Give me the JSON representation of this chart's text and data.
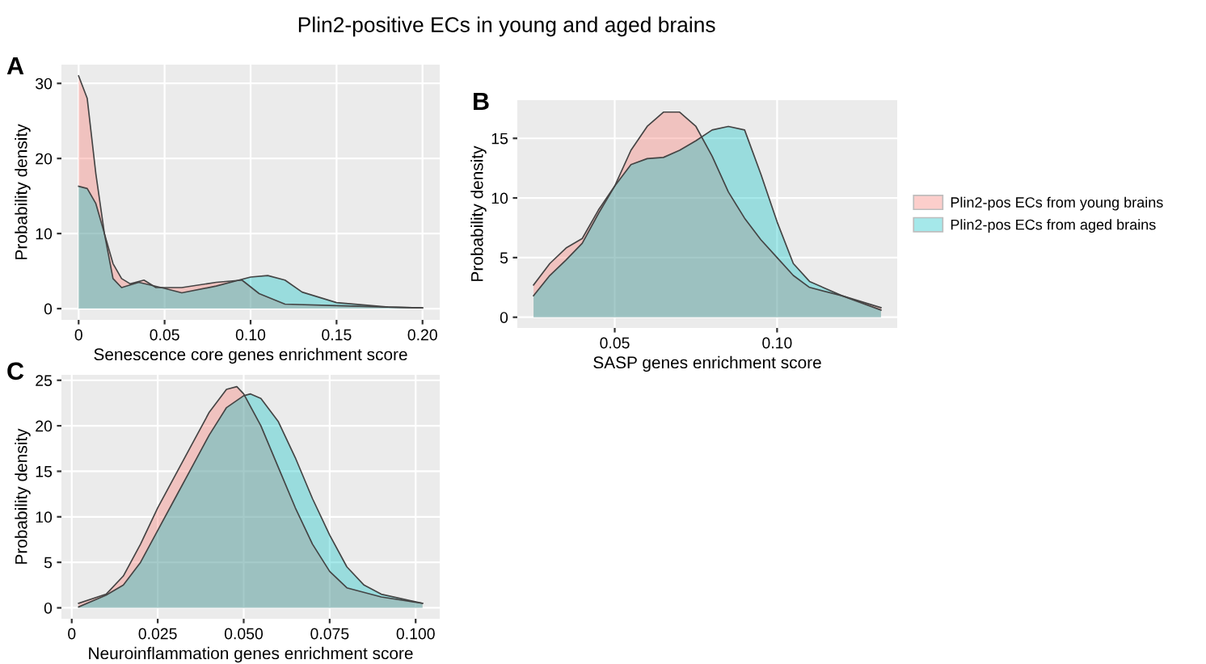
{
  "chart_data": [
    {
      "type": "area",
      "title": "Plin2-positive ECs in young and aged brains",
      "xlabel": "Senescence core genes enrichment score",
      "ylabel": "Probability density",
      "annotations": [
        "A"
      ],
      "xlim": [
        -0.01,
        0.21
      ],
      "xticks": [
        {
          "value": 0,
          "label": "0"
        },
        0.05,
        {
          "value": 0.1,
          "label": "0.10"
        },
        0.15,
        {
          "value": 0.2,
          "label": "0.20"
        }
      ],
      "ylim": [
        -1.5,
        32.5
      ],
      "yticks": [
        0,
        10,
        20,
        30
      ],
      "grid": true,
      "legend": false,
      "series": [
        {
          "color": "#f8766d",
          "x": [
            0,
            0.005,
            0.01,
            0.015,
            0.02,
            0.025,
            0.03,
            0.038,
            0.045,
            0.06,
            0.08,
            0.095,
            0.105,
            0.12,
            0.15,
            0.18,
            0.2
          ],
          "values": [
            31,
            28,
            18,
            10,
            6,
            4,
            3.3,
            3.8,
            2.8,
            2.8,
            3.5,
            3.8,
            2,
            0.6,
            0.4,
            0.2,
            0.1
          ]
        },
        {
          "color": "#00bfc4",
          "x": [
            0,
            0.005,
            0.01,
            0.015,
            0.02,
            0.025,
            0.035,
            0.05,
            0.06,
            0.08,
            0.1,
            0.11,
            0.12,
            0.13,
            0.15,
            0.18,
            0.2
          ],
          "values": [
            16.3,
            16,
            14,
            10,
            4,
            2.8,
            3.5,
            2.7,
            2.1,
            3,
            4.2,
            4.4,
            3.8,
            2.2,
            0.8,
            0.2,
            0.1
          ]
        }
      ]
    },
    {
      "type": "area",
      "xlabel": "SASP genes enrichment score",
      "ylabel": "Probability density",
      "annotations": [
        "B"
      ],
      "xlim": [
        0.02,
        0.137
      ],
      "xticks": [
        0.05,
        {
          "value": 0.1,
          "label": "0.10"
        }
      ],
      "ylim": [
        -0.9,
        18.2
      ],
      "yticks": [
        0,
        5,
        10,
        15
      ],
      "grid": true,
      "legend": "right",
      "series": [
        {
          "name": "Plin2-pos ECs from young brains",
          "color": "#f8766d",
          "x": [
            0.025,
            0.03,
            0.035,
            0.04,
            0.045,
            0.05,
            0.055,
            0.06,
            0.065,
            0.07,
            0.075,
            0.08,
            0.085,
            0.09,
            0.095,
            0.1,
            0.105,
            0.11,
            0.12,
            0.132
          ],
          "values": [
            2.7,
            4.5,
            5.8,
            6.6,
            9,
            11,
            14,
            16,
            17.2,
            17.2,
            16,
            13.5,
            10.5,
            8.3,
            6.5,
            5,
            3.5,
            2.5,
            1.8,
            0.8
          ]
        },
        {
          "name": "Plin2-pos ECs from aged brains",
          "color": "#00bfc4",
          "x": [
            0.025,
            0.03,
            0.035,
            0.04,
            0.045,
            0.05,
            0.055,
            0.06,
            0.065,
            0.07,
            0.075,
            0.08,
            0.085,
            0.09,
            0.095,
            0.1,
            0.105,
            0.11,
            0.12,
            0.132
          ],
          "values": [
            1.8,
            3.5,
            4.8,
            6.2,
            8.7,
            11,
            12.8,
            13.3,
            13.4,
            14,
            14.8,
            15.7,
            16,
            15.7,
            12,
            8,
            4.5,
            3,
            1.8,
            0.6
          ]
        }
      ]
    },
    {
      "type": "area",
      "xlabel": "Neuroinflammation genes enrichment score",
      "ylabel": "Probability density",
      "annotations": [
        "C"
      ],
      "xlim": [
        -0.003,
        0.107
      ],
      "xticks": [
        {
          "value": 0,
          "label": "0"
        },
        0.025,
        {
          "value": 0.05,
          "label": "0.050"
        },
        0.075,
        {
          "value": 0.1,
          "label": "0.100"
        }
      ],
      "ylim": [
        -1.2,
        25.6
      ],
      "yticks": [
        0,
        5,
        10,
        15,
        20,
        25
      ],
      "grid": true,
      "legend": false,
      "series": [
        {
          "color": "#f8766d",
          "x": [
            0.002,
            0.01,
            0.015,
            0.02,
            0.025,
            0.03,
            0.035,
            0.04,
            0.045,
            0.048,
            0.05,
            0.055,
            0.06,
            0.065,
            0.07,
            0.075,
            0.08,
            0.09,
            0.102
          ],
          "values": [
            0.5,
            1.5,
            3.5,
            7,
            11,
            14.5,
            18,
            21.5,
            24,
            24.3,
            23.5,
            20,
            15.5,
            11,
            7,
            4,
            2.2,
            1.2,
            0.5
          ]
        },
        {
          "color": "#00bfc4",
          "x": [
            0.002,
            0.01,
            0.015,
            0.02,
            0.025,
            0.03,
            0.035,
            0.04,
            0.045,
            0.05,
            0.052,
            0.055,
            0.06,
            0.065,
            0.07,
            0.075,
            0.08,
            0.085,
            0.09,
            0.102
          ],
          "values": [
            0.1,
            1.4,
            2.5,
            5,
            8.5,
            12,
            15.5,
            19,
            22,
            23.3,
            23.5,
            23,
            20.5,
            16.5,
            12,
            8,
            4.5,
            2.5,
            1.5,
            0.5
          ]
        }
      ]
    }
  ]
}
